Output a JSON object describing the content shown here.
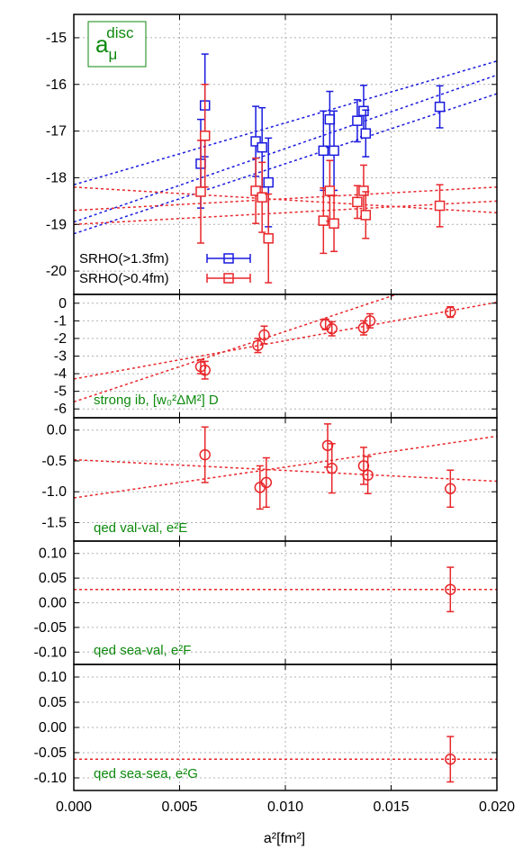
{
  "chart_data": [
    {
      "type": "scatter",
      "title": "a_μ^disc",
      "title_base": "a",
      "title_sub": "μ",
      "title_sup": "disc",
      "ylim": [
        -20.5,
        -14.5
      ],
      "yticks": [
        -20,
        -19,
        -18,
        -17,
        -16,
        -15
      ],
      "ytick_labels": [
        "-20",
        "-19",
        "-18",
        "-17",
        "-16",
        "-15"
      ],
      "grid": true,
      "legend_placement": "bottom-left",
      "series": [
        {
          "name": "SRHO(>1.3fm)",
          "color": "#1a1adf",
          "marker": "square",
          "points": [
            {
              "x": 0.006,
              "y": -17.7,
              "err": 0.95
            },
            {
              "x": 0.0062,
              "y": -16.45,
              "err": 1.1
            },
            {
              "x": 0.0086,
              "y": -17.22,
              "err": 0.75
            },
            {
              "x": 0.0089,
              "y": -17.35,
              "err": 0.85
            },
            {
              "x": 0.0092,
              "y": -18.1,
              "err": 0.95
            },
            {
              "x": 0.0118,
              "y": -17.42,
              "err": 0.85
            },
            {
              "x": 0.0121,
              "y": -16.75,
              "err": 0.6
            },
            {
              "x": 0.0123,
              "y": -17.42,
              "err": 0.85
            },
            {
              "x": 0.0134,
              "y": -16.78,
              "err": 0.45
            },
            {
              "x": 0.0137,
              "y": -16.57,
              "err": 0.55
            },
            {
              "x": 0.0138,
              "y": -17.05,
              "err": 0.5
            },
            {
              "x": 0.0173,
              "y": -16.48,
              "err": 0.45
            }
          ],
          "fit_lines": [
            [
              -18.15,
              -15.5
            ],
            [
              -18.95,
              -15.8
            ],
            [
              -19.2,
              -16.2
            ]
          ]
        },
        {
          "name": "SRHO(>0.4fm)",
          "color": "#e8262a",
          "marker": "square",
          "points": [
            {
              "x": 0.006,
              "y": -18.3,
              "err": 1.1
            },
            {
              "x": 0.0062,
              "y": -17.1,
              "err": 1.1
            },
            {
              "x": 0.0086,
              "y": -18.28,
              "err": 0.7
            },
            {
              "x": 0.0089,
              "y": -18.42,
              "err": 0.75
            },
            {
              "x": 0.0092,
              "y": -19.3,
              "err": 0.95
            },
            {
              "x": 0.0118,
              "y": -18.92,
              "err": 0.7
            },
            {
              "x": 0.0121,
              "y": -18.28,
              "err": 0.65
            },
            {
              "x": 0.0123,
              "y": -18.98,
              "err": 0.6
            },
            {
              "x": 0.0134,
              "y": -18.52,
              "err": 0.35
            },
            {
              "x": 0.0137,
              "y": -18.28,
              "err": 0.55
            },
            {
              "x": 0.0138,
              "y": -18.8,
              "err": 0.5
            },
            {
              "x": 0.0173,
              "y": -18.6,
              "err": 0.45
            }
          ],
          "fit_lines": [
            [
              -18.2,
              -18.75
            ],
            [
              -18.7,
              -18.2
            ],
            [
              -19.0,
              -18.5
            ]
          ]
        }
      ]
    },
    {
      "type": "scatter",
      "annotation": "strong ib, [w₀²ΔM²] D",
      "ylim": [
        -6.5,
        0.5
      ],
      "yticks": [
        -6,
        -5,
        -4,
        -3,
        -2,
        -1,
        0
      ],
      "ytick_labels": [
        "-6",
        "-5",
        "-4",
        "-3",
        "-2",
        "-1",
        "0"
      ],
      "series": [
        {
          "color": "#e8262a",
          "marker": "circle",
          "points": [
            {
              "x": 0.006,
              "y": -3.6,
              "err": 0.4
            },
            {
              "x": 0.0062,
              "y": -3.8,
              "err": 0.5
            },
            {
              "x": 0.0087,
              "y": -2.4,
              "err": 0.4
            },
            {
              "x": 0.009,
              "y": -1.8,
              "err": 0.5
            },
            {
              "x": 0.0119,
              "y": -1.2,
              "err": 0.3
            },
            {
              "x": 0.0122,
              "y": -1.45,
              "err": 0.4
            },
            {
              "x": 0.0137,
              "y": -1.4,
              "err": 0.4
            },
            {
              "x": 0.014,
              "y": -1.0,
              "err": 0.4
            },
            {
              "x": 0.0178,
              "y": -0.5,
              "err": 0.3
            }
          ],
          "fit_lines": [
            [
              -5.6,
              2.4
            ],
            [
              -4.3,
              0.05
            ]
          ]
        }
      ]
    },
    {
      "type": "scatter",
      "annotation": "qed val-val, e²E",
      "ylim": [
        -1.8,
        0.2
      ],
      "yticks": [
        -1.5,
        -1.0,
        -0.5,
        0.0
      ],
      "ytick_labels": [
        "-1.5",
        "-1.0",
        "-0.5",
        "0.0"
      ],
      "series": [
        {
          "color": "#e8262a",
          "marker": "circle",
          "points": [
            {
              "x": 0.0062,
              "y": -0.4,
              "err": 0.45
            },
            {
              "x": 0.0088,
              "y": -0.93,
              "err": 0.35
            },
            {
              "x": 0.0091,
              "y": -0.85,
              "err": 0.4
            },
            {
              "x": 0.012,
              "y": -0.25,
              "err": 0.35
            },
            {
              "x": 0.0122,
              "y": -0.62,
              "err": 0.4
            },
            {
              "x": 0.0137,
              "y": -0.58,
              "err": 0.3
            },
            {
              "x": 0.0139,
              "y": -0.73,
              "err": 0.3
            },
            {
              "x": 0.0178,
              "y": -0.95,
              "err": 0.3
            }
          ],
          "fit_lines": [
            [
              -1.1,
              -0.1
            ],
            [
              -0.48,
              -0.83
            ]
          ]
        }
      ]
    },
    {
      "type": "scatter",
      "annotation": "qed sea-val, e²F",
      "ylim": [
        -0.125,
        0.125
      ],
      "yticks": [
        -0.1,
        -0.05,
        0.0,
        0.05,
        0.1
      ],
      "ytick_labels": [
        "-0.10",
        "-0.05",
        "0.00",
        "0.05",
        "0.10"
      ],
      "series": [
        {
          "color": "#e8262a",
          "marker": "circle",
          "points": [
            {
              "x": 0.0178,
              "y": 0.027,
              "err": 0.045
            }
          ],
          "fit_lines": [
            [
              0.027,
              0.027
            ]
          ]
        }
      ]
    },
    {
      "type": "scatter",
      "annotation": "qed sea-sea, e²G",
      "ylim": [
        -0.125,
        0.125
      ],
      "yticks": [
        -0.1,
        -0.05,
        0.0,
        0.05,
        0.1
      ],
      "ytick_labels": [
        "-0.10",
        "-0.05",
        "0.00",
        "0.05",
        "0.10"
      ],
      "series": [
        {
          "color": "#e8262a",
          "marker": "circle",
          "points": [
            {
              "x": 0.0178,
              "y": -0.063,
              "err": 0.045
            }
          ],
          "fit_lines": [
            [
              -0.063,
              -0.063
            ]
          ]
        }
      ]
    }
  ],
  "shared_x": {
    "xlabel": "a²[fm²]",
    "xlim": [
      0.0,
      0.02
    ],
    "xticks": [
      0.0,
      0.005,
      0.01,
      0.015,
      0.02
    ],
    "xtick_labels": [
      "0.000",
      "0.005",
      "0.010",
      "0.015",
      "0.020"
    ]
  },
  "colors": {
    "title_box": "#0d8a0d",
    "annotation_text": "#0d8a0d",
    "grid": "#b0b0b0",
    "axis": "#000000"
  }
}
